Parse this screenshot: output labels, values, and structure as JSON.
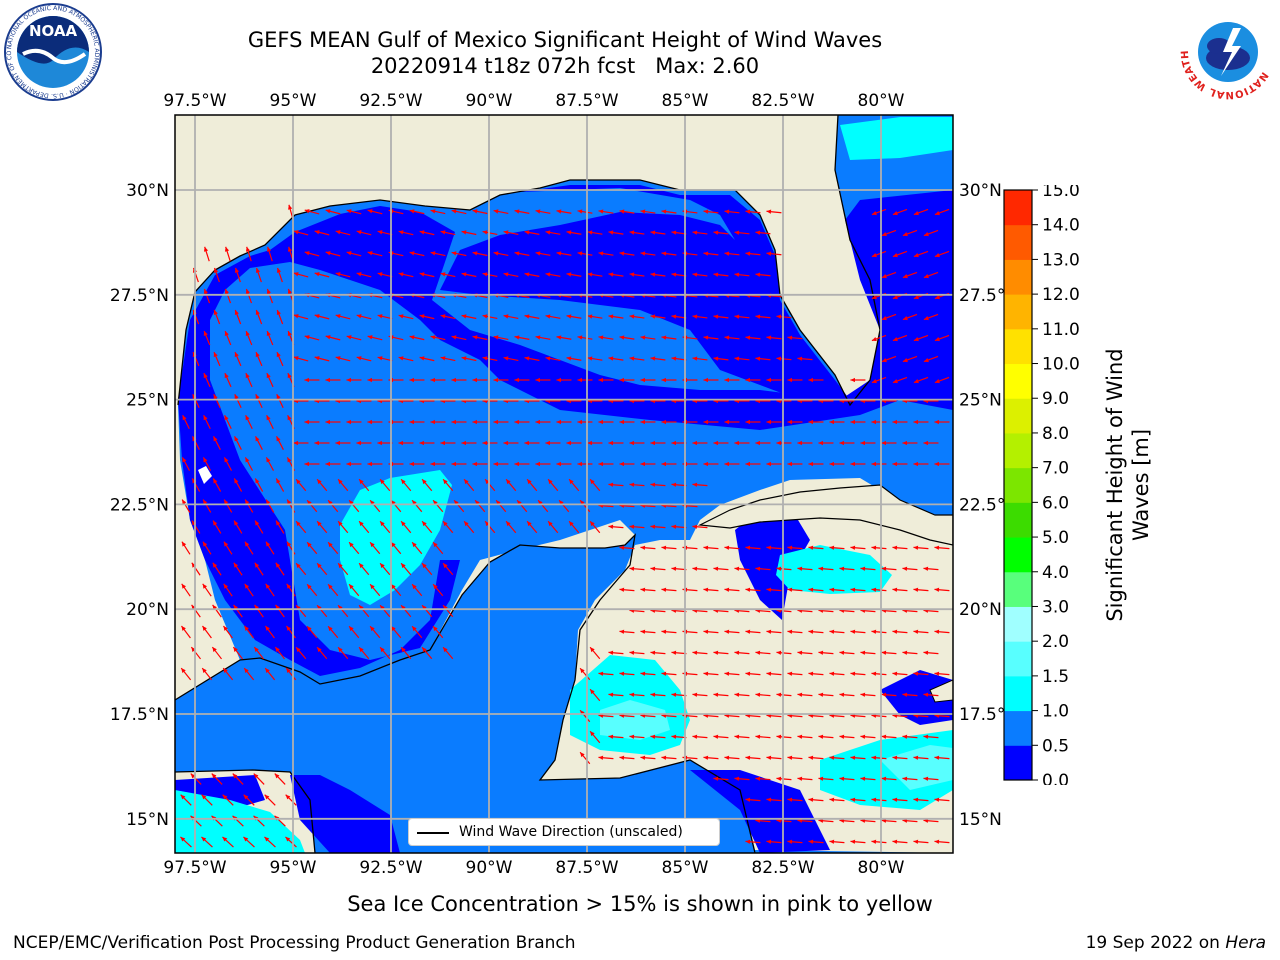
{
  "header": {
    "title_line1": "GEFS MEAN Gulf of Mexico Significant Height of Wind Waves",
    "title_line2": "20220914 t18z 072h fcst   Max: 2.60"
  },
  "logos": {
    "left": {
      "name": "noaa-logo",
      "text": "NOAA",
      "ring_text": "NATIONAL OCEANIC AND ATMOSPHERIC ADMINISTRATION · U.S. DEPARTMENT OF COMMERCE"
    },
    "right": {
      "name": "nws-logo",
      "ring_text": "NATIONAL WEATHER SERVICE"
    }
  },
  "map": {
    "lon_labels": [
      "97.5°W",
      "95°W",
      "92.5°W",
      "90°W",
      "87.5°W",
      "85°W",
      "82.5°W",
      "80°W"
    ],
    "lat_labels": [
      "30°N",
      "27.5°N",
      "25°N",
      "22.5°N",
      "20°N",
      "17.5°N",
      "15°N"
    ],
    "lat_labels_right": [
      "30°N",
      "27.5°",
      "25°N",
      "22.5°",
      "20°N",
      "17.5°",
      "15°N"
    ],
    "legend_label": "Wind Wave Direction (unscaled)",
    "colors": {
      "land": "#efedd9",
      "ocean_low": "#0000ff",
      "ocean_mid": "#0a7cff",
      "ocean_high": "#00ffff",
      "ocean_top": "#58ffff",
      "arrow": "#ff0000",
      "grid": "#b0b0b0"
    }
  },
  "colorbar": {
    "title_line1": "Significant Height of Wind",
    "title_line2": "Waves [m]",
    "levels": [
      "0.0",
      "0.5",
      "1.0",
      "1.5",
      "2.0",
      "3.0",
      "4.0",
      "5.0",
      "6.0",
      "7.0",
      "8.0",
      "9.0",
      "10.0",
      "11.0",
      "12.0",
      "13.0",
      "14.0",
      "15.0"
    ],
    "colors": [
      "#0000ff",
      "#0a7cff",
      "#00ffff",
      "#58ffff",
      "#a0ffff",
      "#58ff7c",
      "#00ff00",
      "#3cdc00",
      "#7ce600",
      "#b4f000",
      "#dcf000",
      "#ffff00",
      "#ffe100",
      "#ffb400",
      "#ff8c00",
      "#ff5a00",
      "#ff2800"
    ]
  },
  "footer": {
    "ice_note": "Sea Ice Concentration > 15% is shown in pink to yellow",
    "left": "NCEP/EMC/Verification Post Processing Product Generation Branch",
    "right_date": "19 Sep 2022 on ",
    "right_host": "Hera"
  }
}
